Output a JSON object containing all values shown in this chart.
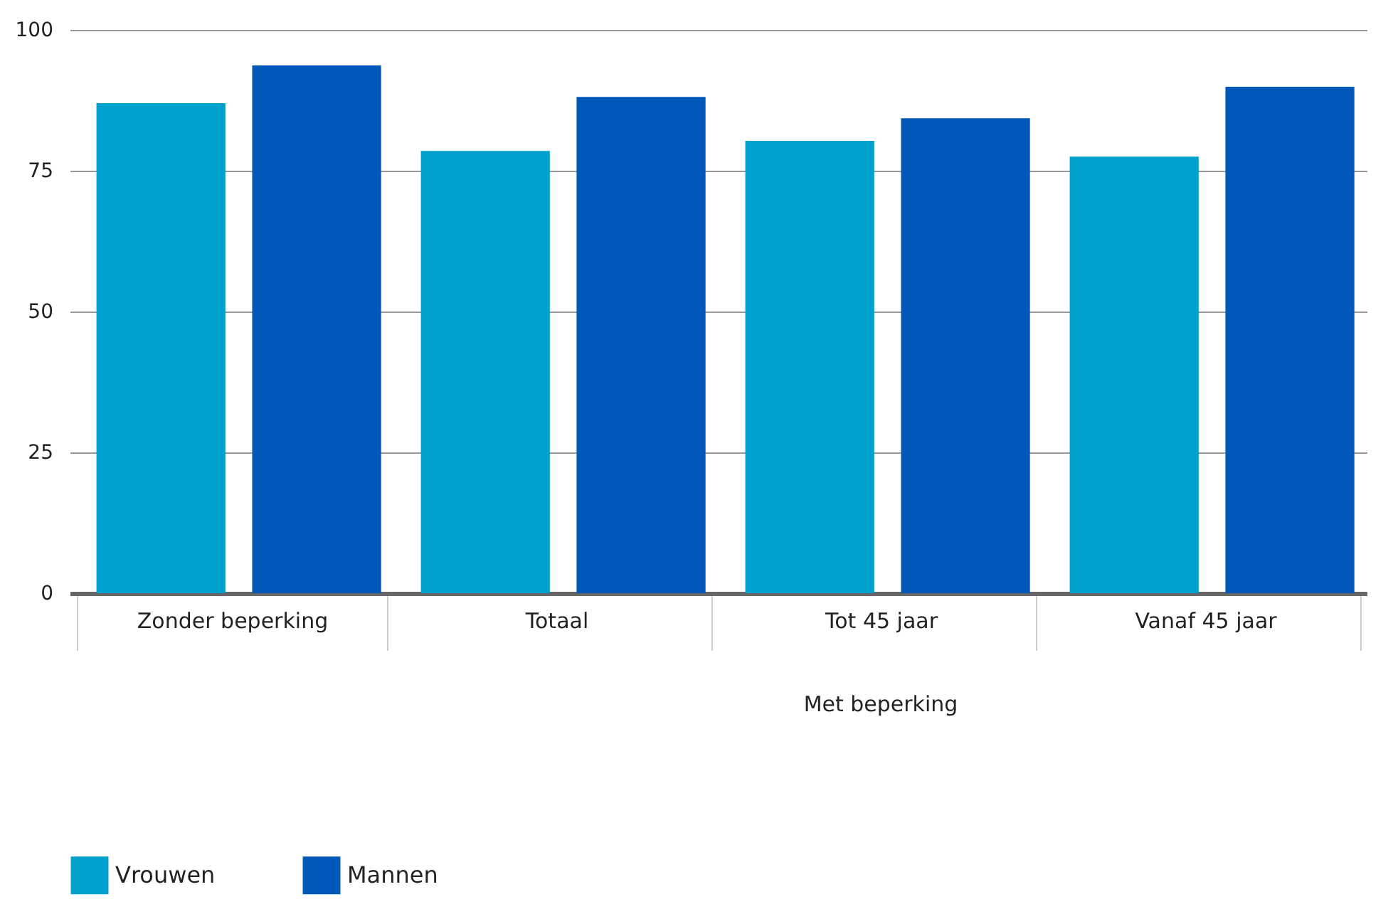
{
  "chart_data": {
    "type": "bar",
    "categories": [
      "Zonder beperking",
      "Totaal",
      "Tot 45 jaar",
      "Vanaf 45 jaar"
    ],
    "series": [
      {
        "name": "Vrouwen",
        "color": "#00a1cd",
        "values": [
          87,
          78.5,
          80.3,
          77.5
        ]
      },
      {
        "name": "Mannen",
        "color": "#0058b8",
        "values": [
          93.7,
          88.1,
          84.3,
          89.9
        ]
      }
    ],
    "ylim": [
      0,
      100
    ],
    "yticks": [
      0,
      25,
      50,
      75,
      100
    ],
    "grid": "y",
    "legend": "bottom left",
    "annotations": [
      {
        "text": "Met beperking"
      }
    ]
  }
}
